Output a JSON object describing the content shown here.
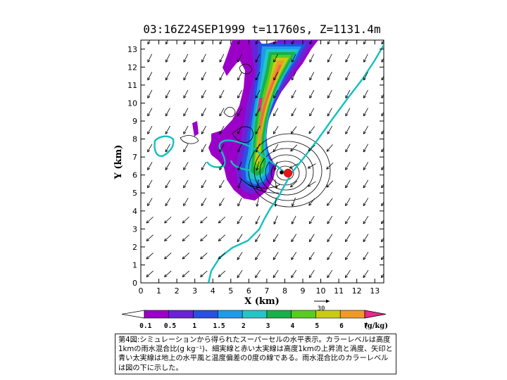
{
  "chart_data": {
    "type": "heatmap",
    "title": "03:16Z24SEP1999  t=11760s,  Z=1131.4m",
    "xlabel": "X (km)",
    "ylabel": "Y (km)",
    "xlim": [
      0,
      13.5
    ],
    "ylim": [
      0,
      13.5
    ],
    "x_ticks": [
      0,
      1,
      2,
      3,
      4,
      5,
      6,
      7,
      8,
      9,
      10,
      11,
      12,
      13
    ],
    "y_ticks": [
      0,
      1,
      2,
      3,
      4,
      5,
      6,
      7,
      8,
      9,
      10,
      11,
      12,
      13
    ],
    "reference_vector": "30",
    "colorbar": {
      "unit": "(g/kg)",
      "levels": [
        "0.1",
        "0.5",
        "1",
        "1.5",
        "2",
        "3",
        "4",
        "5",
        "6",
        "7"
      ],
      "colors": [
        "#9a00c8",
        "#6a22d8",
        "#2a50e0",
        "#1a9ee8",
        "#22c6c6",
        "#18b04a",
        "#58cc20",
        "#c8cc10",
        "#ee9a2a",
        "#ec6c48",
        "#e8288c"
      ]
    }
  },
  "caption": "第4図:シミュレーションから得られたスーパーセルの水平表示。カラーレベルは高度1kmの雨水混合比(g kg⁻¹)、細実線と赤い太実線は高度1kmの上昇流と渦度、矢印と青い太実線は地上の水平風と温度偏差の0度の線である。雨水混合比のカラーレベルは図の下に示した。"
}
